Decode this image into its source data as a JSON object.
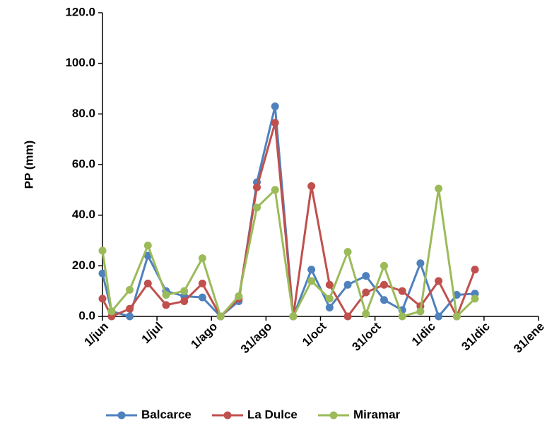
{
  "chart_data": {
    "type": "line",
    "y_label": "PP (mm)",
    "x": [
      0,
      5,
      15,
      25,
      35,
      45,
      55,
      65,
      75,
      85,
      95,
      105,
      115,
      125,
      135,
      145,
      155,
      165,
      175,
      185,
      195,
      205
    ],
    "series": [
      {
        "name": "Balcarce",
        "color": "#4f81bd",
        "values": [
          17,
          2,
          0,
          24,
          10,
          8,
          7.5,
          0,
          6,
          53,
          83,
          0,
          18.5,
          3.5,
          12.5,
          16,
          6.5,
          2.5,
          21,
          0,
          8.5,
          9
        ]
      },
      {
        "name": "La Dulce",
        "color": "#c0504d",
        "values": [
          7,
          0,
          3,
          13,
          4.5,
          6,
          13,
          0,
          7,
          51,
          76.5,
          0,
          51.5,
          12.5,
          0,
          9.5,
          12.5,
          10,
          4,
          14,
          0,
          18.5
        ]
      },
      {
        "name": "Miramar",
        "color": "#9bbb59",
        "values": [
          26,
          2,
          10.5,
          28,
          8.5,
          10,
          23,
          0,
          8,
          43,
          50,
          0,
          14,
          7,
          25.5,
          1,
          20,
          0,
          2,
          50.5,
          0,
          7
        ]
      }
    ],
    "xlim": [
      0,
      240
    ],
    "xticks": [
      {
        "value": 0,
        "label": "1/jun"
      },
      {
        "value": 30,
        "label": "1/jul"
      },
      {
        "value": 60,
        "label": "1/ago"
      },
      {
        "value": 90,
        "label": "31/ago"
      },
      {
        "value": 120,
        "label": "1/oct"
      },
      {
        "value": 150,
        "label": "31/oct"
      },
      {
        "value": 180,
        "label": "1/dic"
      },
      {
        "value": 210,
        "label": "31/dic"
      },
      {
        "value": 240,
        "label": "31/ene"
      }
    ],
    "ylim": [
      0,
      120
    ],
    "yticks": [
      {
        "value": 0,
        "label": "0.0"
      },
      {
        "value": 20,
        "label": "20.0"
      },
      {
        "value": 40,
        "label": "40.0"
      },
      {
        "value": 60,
        "label": "60.0"
      },
      {
        "value": 80,
        "label": "80.0"
      },
      {
        "value": 100,
        "label": "100.0"
      },
      {
        "value": 120,
        "label": "120.0"
      }
    ],
    "legend": "bottom"
  }
}
